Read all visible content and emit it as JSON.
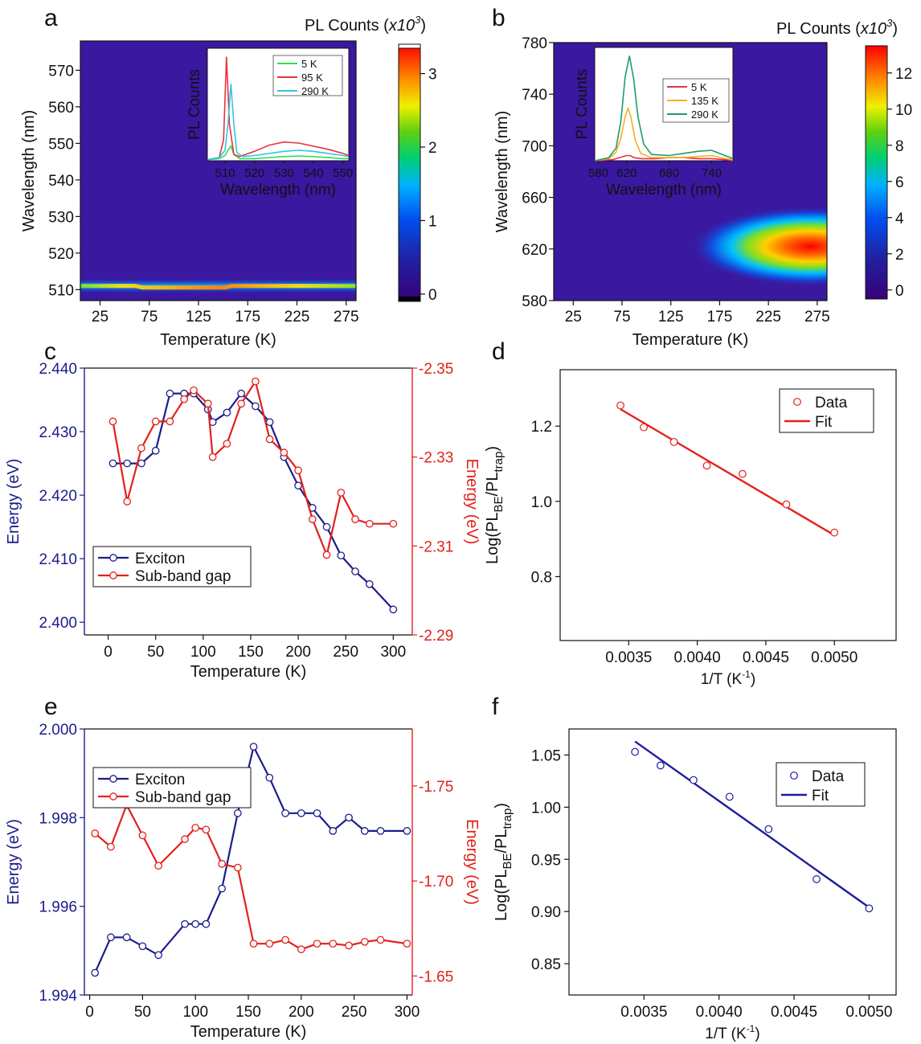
{
  "chart_data": [
    {
      "panel": "a",
      "type": "heatmap",
      "colorbar_title": "PL Counts (x10",
      "colorbar_exp": "3",
      "colorbar_close": ")",
      "xlabel": "Temperature (K)",
      "ylabel": "Wavelength (nm)",
      "xlim": [
        5,
        285
      ],
      "ylim": [
        507,
        578
      ],
      "xticks": [
        25,
        75,
        125,
        175,
        225,
        275
      ],
      "yticks": [
        510,
        520,
        530,
        540,
        550,
        560,
        570
      ],
      "colorbar_ticks": [
        0,
        1,
        2,
        3
      ],
      "colorbar_range": [
        -0.1,
        3.4
      ],
      "band": {
        "center_nm": 511,
        "peak_counts": 3.1
      },
      "inset": {
        "type": "line",
        "xlabel": "Wavelength (nm)",
        "ylabel": "PL Counts",
        "xticks": [
          510,
          520,
          530,
          540,
          550
        ],
        "xlim": [
          504,
          552
        ],
        "series": [
          {
            "name": "5 K",
            "color": "#33dd55",
            "x": [
              504,
              508,
              510,
              511,
              512,
              513,
              515,
              520,
              525,
              530,
              535,
              540,
              545,
              550,
              552
            ],
            "y": [
              0.01,
              0.02,
              0.05,
              0.1,
              0.14,
              0.06,
              0.02,
              0.02,
              0.03,
              0.04,
              0.045,
              0.04,
              0.03,
              0.02,
              0.02
            ]
          },
          {
            "name": "95 K",
            "color": "#e8323c",
            "x": [
              504,
              508,
              509.5,
              510.5,
              511.5,
              513,
              515,
              520,
              525,
              530,
              535,
              540,
              545,
              550,
              552
            ],
            "y": [
              0.01,
              0.03,
              0.2,
              1.0,
              0.35,
              0.06,
              0.04,
              0.09,
              0.15,
              0.18,
              0.17,
              0.14,
              0.11,
              0.07,
              0.05
            ]
          },
          {
            "name": "290 K",
            "color": "#33c6dd",
            "x": [
              504,
              508,
              510,
              511,
              512,
              513,
              514,
              516,
              520,
              525,
              530,
              535,
              540,
              545,
              550,
              552
            ],
            "y": [
              0.01,
              0.03,
              0.1,
              0.35,
              0.74,
              0.35,
              0.08,
              0.04,
              0.05,
              0.07,
              0.09,
              0.1,
              0.09,
              0.07,
              0.05,
              0.04
            ]
          }
        ]
      }
    },
    {
      "panel": "b",
      "type": "heatmap",
      "colorbar_title": "PL Counts (x10",
      "colorbar_exp": "3",
      "colorbar_close": ")",
      "xlabel": "Temperature (K)",
      "ylabel": "Wavelength (nm)",
      "xlim": [
        5,
        285
      ],
      "ylim": [
        580,
        780
      ],
      "xticks": [
        25,
        75,
        125,
        175,
        225,
        275
      ],
      "yticks": [
        580,
        620,
        660,
        700,
        740,
        780
      ],
      "colorbar_ticks": [
        0,
        2,
        4,
        6,
        8,
        10,
        12
      ],
      "colorbar_range": [
        -0.5,
        13.5
      ],
      "blob": {
        "center_K": 268,
        "center_nm": 622,
        "peak_counts": 13
      },
      "inset": {
        "type": "line",
        "xlabel": "Wavelength (nm)",
        "ylabel": "PL Counts",
        "xticks": [
          580,
          620,
          680,
          740
        ],
        "xlim": [
          575,
          770
        ],
        "series": [
          {
            "name": "5 K",
            "color": "#e8323c",
            "x": [
              575,
              600,
              610,
              620,
              625,
              630,
              640,
              660,
              680,
              700,
              720,
              740,
              760,
              770
            ],
            "y": [
              0.0,
              0.01,
              0.03,
              0.05,
              0.05,
              0.03,
              0.02,
              0.02,
              0.03,
              0.03,
              0.02,
              0.02,
              0.01,
              0.0
            ]
          },
          {
            "name": "135 K",
            "color": "#f5b01e",
            "x": [
              575,
              595,
              605,
              612,
              618,
              622,
              626,
              632,
              640,
              655,
              680,
              700,
              720,
              740,
              760,
              770
            ],
            "y": [
              0.0,
              0.02,
              0.08,
              0.22,
              0.42,
              0.5,
              0.42,
              0.2,
              0.07,
              0.03,
              0.03,
              0.03,
              0.04,
              0.05,
              0.02,
              0.01
            ]
          },
          {
            "name": "290 K",
            "color": "#1f9a6b",
            "x": [
              575,
              595,
              605,
              612,
              618,
              624,
              630,
              636,
              644,
              655,
              680,
              700,
              720,
              740,
              755,
              770
            ],
            "y": [
              0.0,
              0.03,
              0.12,
              0.38,
              0.8,
              1.0,
              0.78,
              0.42,
              0.16,
              0.06,
              0.05,
              0.07,
              0.09,
              0.1,
              0.06,
              0.02
            ]
          }
        ]
      }
    },
    {
      "panel": "c",
      "type": "line",
      "xlabel": "Temperature (K)",
      "ylabel": "Energy (eV)",
      "y2label": "Energy (eV)",
      "xlim": [
        -25,
        320
      ],
      "xticks": [
        0,
        50,
        100,
        150,
        200,
        250,
        300
      ],
      "ylim": [
        2.398,
        2.44
      ],
      "yticks": [
        "2.400",
        "2.410",
        "2.420",
        "2.430",
        "2.440"
      ],
      "y2lim": [
        2.29,
        2.35
      ],
      "y2ticks": [
        "2.29",
        "2.31",
        "2.33",
        "2.35"
      ],
      "legend_position": "lower-left",
      "series": [
        {
          "name": "Exciton",
          "axis": "left",
          "color": "#1c1c8c",
          "x": [
            5,
            20,
            35,
            50,
            65,
            80,
            90,
            105,
            110,
            125,
            140,
            155,
            170,
            185,
            200,
            215,
            230,
            245,
            260,
            275,
            300
          ],
          "y": [
            2.425,
            2.425,
            2.425,
            2.427,
            2.436,
            2.436,
            2.436,
            2.4335,
            2.4315,
            2.433,
            2.436,
            2.434,
            2.4315,
            2.426,
            2.4215,
            2.418,
            2.415,
            2.4105,
            2.408,
            2.406,
            2.402
          ]
        },
        {
          "name": "Sub-band gap",
          "axis": "right",
          "color": "#e3201b",
          "x": [
            5,
            20,
            35,
            50,
            65,
            80,
            90,
            105,
            110,
            125,
            140,
            155,
            170,
            185,
            200,
            215,
            230,
            245,
            260,
            275,
            300
          ],
          "y": [
            2.338,
            2.32,
            2.332,
            2.338,
            2.338,
            2.343,
            2.345,
            2.342,
            2.33,
            2.333,
            2.342,
            2.347,
            2.334,
            2.331,
            2.327,
            2.316,
            2.308,
            2.322,
            2.316,
            2.315,
            2.315
          ]
        }
      ]
    },
    {
      "panel": "d",
      "type": "scatter",
      "xlabel": "1/T (K",
      "xlabel_sup": "-1",
      "xlabel_close": ")",
      "ylabel_main": "Log(PL",
      "ylabel_sub1": "BE",
      "ylabel_mid": "/PL",
      "ylabel_sub2": "trap",
      "ylabel_close": ")",
      "xlim": [
        0.003,
        0.00545
      ],
      "xticks": [
        "0.0035",
        "0.0040",
        "0.0045",
        "0.0050"
      ],
      "ylim": [
        0.63,
        1.35
      ],
      "yticks": [
        "0.8",
        "1.0",
        "1.2"
      ],
      "legend_position": "top-right",
      "color": "#e3201b",
      "series": [
        {
          "name": "Data",
          "kind": "points",
          "x": [
            0.00344,
            0.00361,
            0.00383,
            0.00407,
            0.00433,
            0.00465,
            0.005
          ],
          "y": [
            1.255,
            1.197,
            1.158,
            1.095,
            1.073,
            0.992,
            0.917
          ]
        },
        {
          "name": "Fit",
          "kind": "line",
          "x": [
            0.00344,
            0.005
          ],
          "y": [
            1.245,
            0.91
          ]
        }
      ]
    },
    {
      "panel": "e",
      "type": "line",
      "xlabel": "Temperature (K)",
      "ylabel": "Energy (eV)",
      "y2label": "Energy (eV)",
      "xlim": [
        -5,
        305
      ],
      "xticks": [
        0,
        50,
        100,
        150,
        200,
        250,
        300
      ],
      "ylim": [
        1.994,
        2.0
      ],
      "yticks": [
        "1.994",
        "1.996",
        "1.998",
        "2.000"
      ],
      "y2lim": [
        1.64,
        1.78
      ],
      "y2ticks": [
        "1.65",
        "1.70",
        "1.75"
      ],
      "legend_position": "top-left",
      "series": [
        {
          "name": "Exciton",
          "axis": "left",
          "color": "#1c1c8c",
          "x": [
            5,
            20,
            35,
            50,
            65,
            90,
            100,
            110,
            125,
            140,
            155,
            170,
            185,
            200,
            215,
            230,
            245,
            260,
            275,
            300
          ],
          "y": [
            1.9945,
            1.9953,
            1.9953,
            1.9951,
            1.9949,
            1.9956,
            1.9956,
            1.9956,
            1.9964,
            1.9981,
            1.9996,
            1.9989,
            1.9981,
            1.9981,
            1.9981,
            1.9977,
            1.998,
            1.9977,
            1.9977,
            1.9977
          ]
        },
        {
          "name": "Sub-band gap",
          "axis": "right",
          "color": "#e3201b",
          "x": [
            5,
            20,
            35,
            50,
            65,
            90,
            100,
            110,
            125,
            140,
            155,
            170,
            185,
            200,
            215,
            230,
            245,
            260,
            275,
            300
          ],
          "y": [
            1.725,
            1.718,
            1.74,
            1.724,
            1.708,
            1.722,
            1.728,
            1.727,
            1.709,
            1.707,
            1.667,
            1.667,
            1.669,
            1.664,
            1.667,
            1.667,
            1.666,
            1.668,
            1.669,
            1.667
          ]
        }
      ]
    },
    {
      "panel": "f",
      "type": "scatter",
      "xlabel": "1/T (K",
      "xlabel_sup": "-1",
      "xlabel_close": ")",
      "ylabel_main": "Log(PL",
      "ylabel_sub1": "BE",
      "ylabel_mid": "/PL",
      "ylabel_sub2": "trap",
      "ylabel_close": ")",
      "xlim": [
        0.003,
        0.00518
      ],
      "xticks": [
        "0.0035",
        "0.0040",
        "0.0045",
        "0.0050"
      ],
      "ylim": [
        0.82,
        1.075
      ],
      "yticks": [
        "0.85",
        "0.90",
        "0.95",
        "1.00",
        "1.05"
      ],
      "legend_position": "right",
      "color": "#1c1c9c",
      "series": [
        {
          "name": "Data",
          "kind": "points",
          "x": [
            0.00344,
            0.00361,
            0.00383,
            0.00407,
            0.00433,
            0.00465,
            0.005
          ],
          "y": [
            1.053,
            1.04,
            1.026,
            1.01,
            0.979,
            0.931,
            0.903
          ]
        },
        {
          "name": "Fit",
          "kind": "line",
          "x": [
            0.00344,
            0.005
          ],
          "y": [
            1.063,
            0.904
          ]
        }
      ]
    }
  ]
}
